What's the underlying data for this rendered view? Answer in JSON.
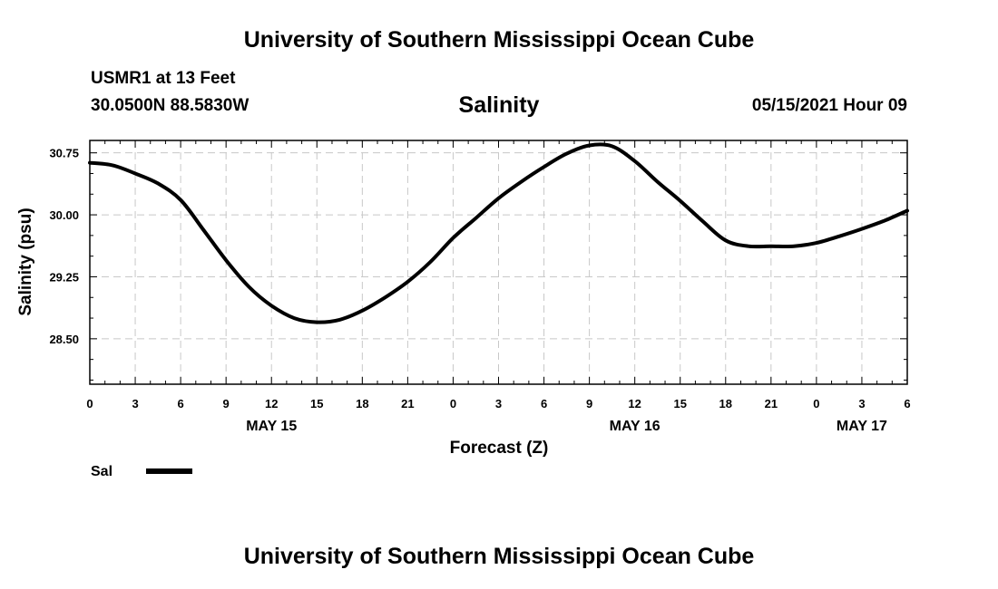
{
  "header": {
    "title": "University of Southern Mississippi Ocean Cube",
    "station": "USMR1 at 13 Feet",
    "coords": "30.0500N  88.5830W",
    "datetime": "05/15/2021 Hour 09"
  },
  "footer": {
    "title": "University of Southern Mississippi Ocean Cube"
  },
  "chart_data": {
    "type": "line",
    "title": "Salinity",
    "xlabel": "Forecast (Z)",
    "ylabel": "Salinity (psu)",
    "xlim": [
      0,
      54
    ],
    "ylim": [
      27.95,
      30.9
    ],
    "x_ticks": [
      0,
      3,
      6,
      9,
      12,
      15,
      18,
      21,
      24,
      27,
      30,
      33,
      36,
      39,
      42,
      45,
      48,
      51,
      54
    ],
    "x_tick_labels": [
      "0",
      "3",
      "6",
      "9",
      "12",
      "15",
      "18",
      "21",
      "0",
      "3",
      "6",
      "9",
      "12",
      "15",
      "18",
      "21",
      "0",
      "3",
      "6"
    ],
    "y_ticks": [
      28.5,
      29.25,
      30.0,
      30.75
    ],
    "y_tick_labels": [
      "28.50",
      "29.25",
      "30.00",
      "30.75"
    ],
    "date_labels": [
      {
        "x": 12,
        "label": "MAY 15"
      },
      {
        "x": 36,
        "label": "MAY 16"
      },
      {
        "x": 51,
        "label": "MAY 17"
      }
    ],
    "grid": true,
    "colors": {
      "line": "#000000",
      "grid": "#c8c8c8"
    },
    "series": [
      {
        "name": "Sal",
        "x": [
          0,
          1.5,
          3,
          4.5,
          6,
          7.5,
          9,
          10.5,
          12,
          13.5,
          15,
          16.5,
          18,
          19.5,
          21,
          22.5,
          24,
          25.5,
          27,
          28.5,
          30,
          31.5,
          33,
          34.5,
          36,
          37.5,
          39,
          40.5,
          42,
          43.5,
          45,
          46.5,
          48,
          49.5,
          51,
          52.5,
          54
        ],
        "values": [
          30.63,
          30.6,
          30.5,
          30.38,
          30.18,
          29.82,
          29.45,
          29.13,
          28.9,
          28.75,
          28.7,
          28.73,
          28.84,
          29.0,
          29.19,
          29.43,
          29.72,
          29.96,
          30.2,
          30.4,
          30.58,
          30.74,
          30.84,
          30.83,
          30.65,
          30.4,
          30.17,
          29.92,
          29.69,
          29.62,
          29.62,
          29.62,
          29.66,
          29.74,
          29.83,
          29.93,
          30.05
        ]
      }
    ],
    "legend": [
      {
        "label": "Sal",
        "position": "bottom-left"
      }
    ]
  }
}
